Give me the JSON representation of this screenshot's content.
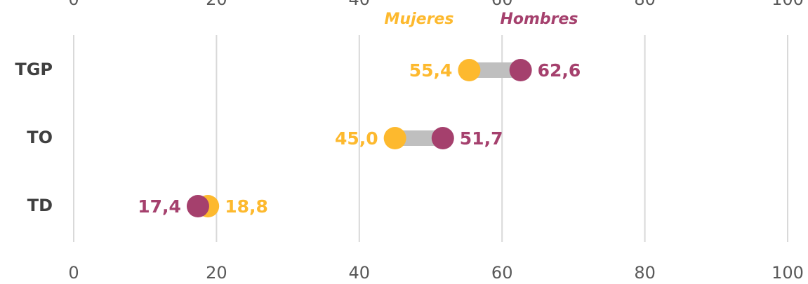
{
  "chart_data": {
    "type": "dumbbell",
    "categories": [
      "TGP",
      "TO",
      "TD"
    ],
    "series": [
      {
        "name": "Mujeres",
        "color": "#FDB92E",
        "values": [
          55.4,
          45.0,
          18.8
        ],
        "value_labels": [
          "55,4",
          "45,0",
          "18,8"
        ]
      },
      {
        "name": "Hombres",
        "color": "#A5406D",
        "values": [
          62.6,
          51.7,
          17.4
        ],
        "value_labels": [
          "62,6",
          "51,7",
          "17,4"
        ]
      }
    ],
    "connector_color": "#BFBFBF",
    "xlim": [
      0,
      100
    ],
    "xticks": [
      0,
      20,
      40,
      60,
      80,
      100
    ],
    "grid": true
  }
}
